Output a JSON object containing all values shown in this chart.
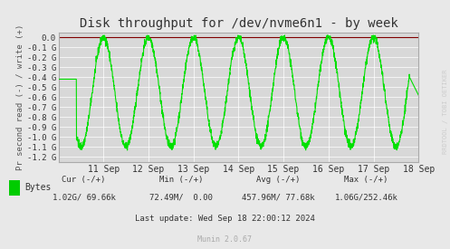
{
  "title": "Disk throughput for /dev/nvme6n1 - by week",
  "ylabel": "Pr second read (-) / write (+)",
  "bg_color": "#e8e8e8",
  "plot_bg_color": "#d8d8d8",
  "line_color": "#00e000",
  "grid_color": "#ffffff",
  "border_color": "#aaaaaa",
  "title_color": "#333333",
  "ylim": [
    -1.25,
    0.05
  ],
  "yticks": [
    0.0,
    -0.1,
    -0.2,
    -0.3,
    -0.4,
    -0.5,
    -0.6,
    -0.7,
    -0.8,
    -0.9,
    -1.0,
    -1.1,
    -1.2
  ],
  "ytick_labels": [
    "0.0",
    "-0.1 G",
    "-0.2 G",
    "-0.3 G",
    "-0.4 G",
    "-0.5 G",
    "-0.6 G",
    "-0.7 G",
    "-0.8 G",
    "-0.9 G",
    "-1.0 G",
    "-1.1 G",
    "-1.2 G"
  ],
  "xtick_labels": [
    "11 Sep",
    "12 Sep",
    "13 Sep",
    "14 Sep",
    "15 Sep",
    "16 Sep",
    "17 Sep",
    "18 Sep"
  ],
  "legend_label": "Bytes",
  "legend_color": "#00cc00",
  "footer_line1": "Cur (-/+)            Min (-/+)             Avg (-/+)           Max (-/+)",
  "footer_line2": "1.02G/ 69.66k      72.49M/   0.00     457.96M/ 77.68k    1.06G/252.46k",
  "footer_line3": "Last update: Wed Sep 18 22:00:12 2024",
  "footer_munin": "Munin 2.0.67",
  "watermark": "RRDTOOL / TOBI OETIKER"
}
